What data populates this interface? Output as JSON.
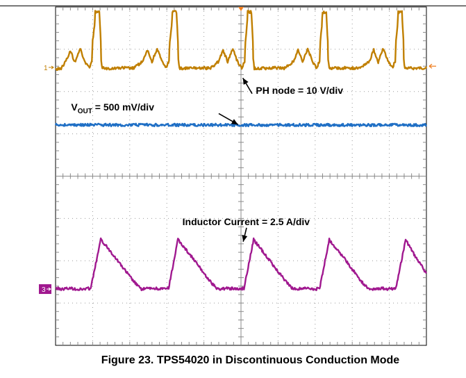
{
  "figure": {
    "caption": "Figure 23. TPS54020 in Discontinuous Conduction Mode"
  },
  "chart_data": {
    "type": "line",
    "title": "",
    "xlabel": "",
    "ylabel": "",
    "grid": true,
    "grid_divisions": {
      "x": 10,
      "y": 8
    },
    "xlim": [
      0,
      10
    ],
    "ylim": [
      0,
      8
    ],
    "colors": {
      "ph": "#c07f00",
      "vout": "#1f6fc5",
      "il": "#a0188f",
      "marker": "#a0188f",
      "trigger": "#f07f20"
    },
    "channel_markers": [
      {
        "label": "1",
        "y": 6.57
      },
      {
        "label": "3",
        "y": 1.33
      }
    ],
    "series": [
      {
        "key": "ph",
        "color": "#c07f00",
        "points": [
          [
            0.0,
            6.52
          ],
          [
            0.15,
            6.55
          ],
          [
            0.28,
            6.72
          ],
          [
            0.4,
            6.96
          ],
          [
            0.52,
            6.7
          ],
          [
            0.66,
            7.02
          ],
          [
            0.78,
            6.72
          ],
          [
            0.9,
            6.56
          ],
          [
            0.98,
            6.72
          ],
          [
            1.0,
            7.2
          ],
          [
            1.05,
            7.55
          ],
          [
            1.07,
            7.88
          ],
          [
            1.18,
            7.88
          ],
          [
            1.2,
            7.52
          ],
          [
            1.22,
            7.2
          ],
          [
            1.23,
            6.75
          ],
          [
            1.26,
            6.55
          ],
          [
            1.5,
            6.55
          ],
          [
            1.8,
            6.56
          ],
          [
            2.1,
            6.55
          ],
          [
            2.36,
            6.72
          ],
          [
            2.48,
            6.98
          ],
          [
            2.6,
            6.7
          ],
          [
            2.74,
            7.02
          ],
          [
            2.86,
            6.72
          ],
          [
            2.98,
            6.56
          ],
          [
            3.06,
            6.72
          ],
          [
            3.08,
            7.2
          ],
          [
            3.13,
            7.55
          ],
          [
            3.15,
            7.88
          ],
          [
            3.26,
            7.88
          ],
          [
            3.28,
            7.52
          ],
          [
            3.3,
            7.2
          ],
          [
            3.31,
            6.75
          ],
          [
            3.34,
            6.55
          ],
          [
            3.6,
            6.55
          ],
          [
            3.9,
            6.56
          ],
          [
            4.18,
            6.55
          ],
          [
            4.4,
            6.72
          ],
          [
            4.52,
            6.98
          ],
          [
            4.64,
            6.7
          ],
          [
            4.78,
            7.02
          ],
          [
            4.9,
            6.72
          ],
          [
            5.02,
            6.56
          ],
          [
            5.1,
            6.72
          ],
          [
            5.12,
            7.2
          ],
          [
            5.16,
            7.55
          ],
          [
            5.18,
            7.88
          ],
          [
            5.28,
            7.88
          ],
          [
            5.3,
            7.52
          ],
          [
            5.32,
            7.2
          ],
          [
            5.33,
            6.75
          ],
          [
            5.36,
            6.55
          ],
          [
            5.6,
            6.55
          ],
          [
            5.9,
            6.56
          ],
          [
            6.18,
            6.55
          ],
          [
            6.42,
            6.72
          ],
          [
            6.54,
            6.98
          ],
          [
            6.66,
            6.7
          ],
          [
            6.8,
            7.02
          ],
          [
            6.92,
            6.72
          ],
          [
            7.04,
            6.56
          ],
          [
            7.12,
            6.72
          ],
          [
            7.14,
            7.2
          ],
          [
            7.18,
            7.55
          ],
          [
            7.2,
            7.88
          ],
          [
            7.3,
            7.88
          ],
          [
            7.32,
            7.52
          ],
          [
            7.34,
            7.2
          ],
          [
            7.35,
            6.75
          ],
          [
            7.38,
            6.55
          ],
          [
            7.6,
            6.55
          ],
          [
            7.9,
            6.56
          ],
          [
            8.18,
            6.55
          ],
          [
            8.46,
            6.72
          ],
          [
            8.58,
            6.98
          ],
          [
            8.7,
            6.7
          ],
          [
            8.84,
            7.02
          ],
          [
            8.96,
            6.72
          ],
          [
            9.08,
            6.56
          ],
          [
            9.16,
            6.72
          ],
          [
            9.18,
            7.2
          ],
          [
            9.22,
            7.55
          ],
          [
            9.24,
            7.88
          ],
          [
            9.34,
            7.88
          ],
          [
            9.36,
            7.52
          ],
          [
            9.38,
            7.2
          ],
          [
            9.39,
            6.75
          ],
          [
            9.42,
            6.55
          ],
          [
            9.7,
            6.55
          ],
          [
            10.0,
            6.56
          ]
        ]
      },
      {
        "key": "vout",
        "color": "#1f6fc5",
        "points": [
          [
            0.0,
            5.21
          ],
          [
            2.5,
            5.21
          ],
          [
            5.0,
            5.21
          ],
          [
            7.5,
            5.21
          ],
          [
            10.0,
            5.21
          ]
        ]
      },
      {
        "key": "il",
        "color": "#a0188f",
        "points": [
          [
            0.0,
            1.35
          ],
          [
            0.15,
            1.33
          ],
          [
            0.4,
            1.35
          ],
          [
            0.65,
            1.32
          ],
          [
            0.95,
            1.35
          ],
          [
            1.22,
            2.5
          ],
          [
            1.55,
            2.15
          ],
          [
            1.85,
            1.8
          ],
          [
            2.1,
            1.52
          ],
          [
            2.3,
            1.33
          ],
          [
            2.6,
            1.35
          ],
          [
            2.9,
            1.33
          ],
          [
            3.05,
            1.35
          ],
          [
            3.3,
            2.5
          ],
          [
            3.62,
            2.15
          ],
          [
            3.92,
            1.8
          ],
          [
            4.16,
            1.52
          ],
          [
            4.36,
            1.33
          ],
          [
            4.65,
            1.35
          ],
          [
            4.95,
            1.33
          ],
          [
            5.08,
            1.35
          ],
          [
            5.34,
            2.5
          ],
          [
            5.65,
            2.15
          ],
          [
            5.95,
            1.8
          ],
          [
            6.2,
            1.52
          ],
          [
            6.4,
            1.33
          ],
          [
            6.7,
            1.35
          ],
          [
            7.0,
            1.33
          ],
          [
            7.12,
            1.35
          ],
          [
            7.38,
            2.5
          ],
          [
            7.7,
            2.15
          ],
          [
            8.0,
            1.8
          ],
          [
            8.24,
            1.52
          ],
          [
            8.44,
            1.33
          ],
          [
            8.75,
            1.35
          ],
          [
            9.05,
            1.33
          ],
          [
            9.18,
            1.35
          ],
          [
            9.44,
            2.5
          ],
          [
            9.7,
            2.1
          ],
          [
            10.0,
            1.7
          ]
        ]
      }
    ],
    "annotations": [
      {
        "key": "ph",
        "text": "PH node = 10 V/div",
        "tx": 5.4,
        "ty": 5.95,
        "ax": 5.3,
        "ay": 5.95,
        "hx": 5.05,
        "hy": 6.32
      },
      {
        "key": "vout",
        "base": "V",
        "sub": "OUT",
        "rest": " = 500 mV/div",
        "tx": 0.42,
        "ty": 5.55,
        "ax": 4.4,
        "ay": 5.48,
        "hx": 4.92,
        "hy": 5.22
      },
      {
        "key": "il",
        "text": "Inductor Current = 2.5 A/div",
        "tx": 3.42,
        "ty": 2.84,
        "ax": 5.15,
        "ay": 2.78,
        "hx": 5.06,
        "hy": 2.45
      }
    ]
  }
}
